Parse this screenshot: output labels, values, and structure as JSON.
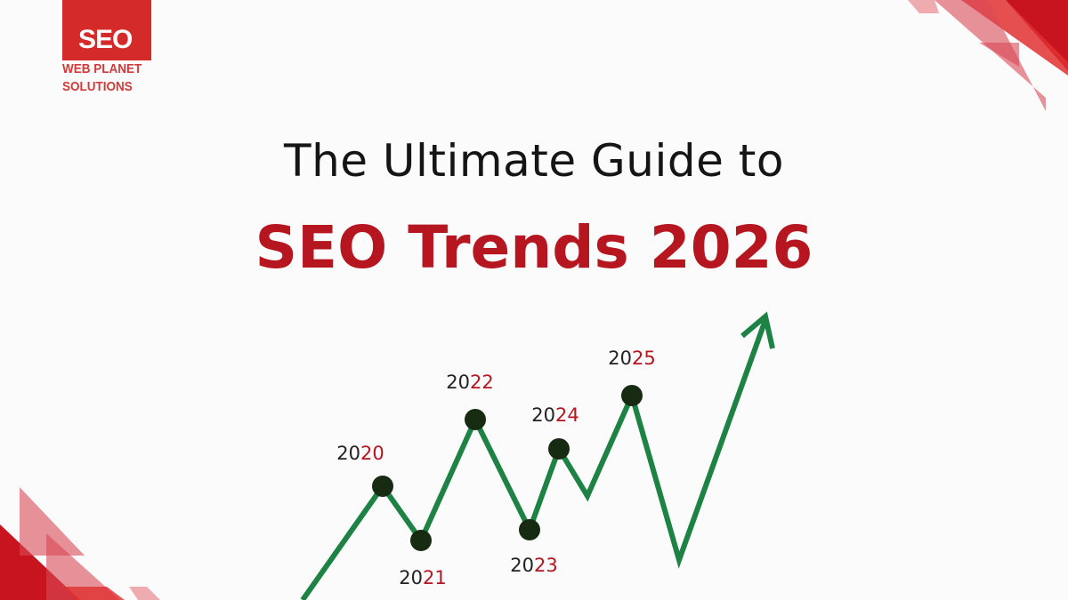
{
  "logo": {
    "mark": "SEO",
    "line1": "WEB PLANET",
    "line2": "SOLUTIONS"
  },
  "title": {
    "line1": "The Ultimate Guide to",
    "line2": "SEO Trends 2026"
  },
  "years": [
    {
      "prefix": "20",
      "suffix": "20"
    },
    {
      "prefix": "20",
      "suffix": "21"
    },
    {
      "prefix": "20",
      "suffix": "22"
    },
    {
      "prefix": "20",
      "suffix": "23"
    },
    {
      "prefix": "20",
      "suffix": "24"
    },
    {
      "prefix": "20",
      "suffix": "25"
    }
  ],
  "colors": {
    "accent": "#b5161f",
    "line": "#1e8244",
    "dot": "#172a12",
    "decor": "#d42a2a"
  }
}
